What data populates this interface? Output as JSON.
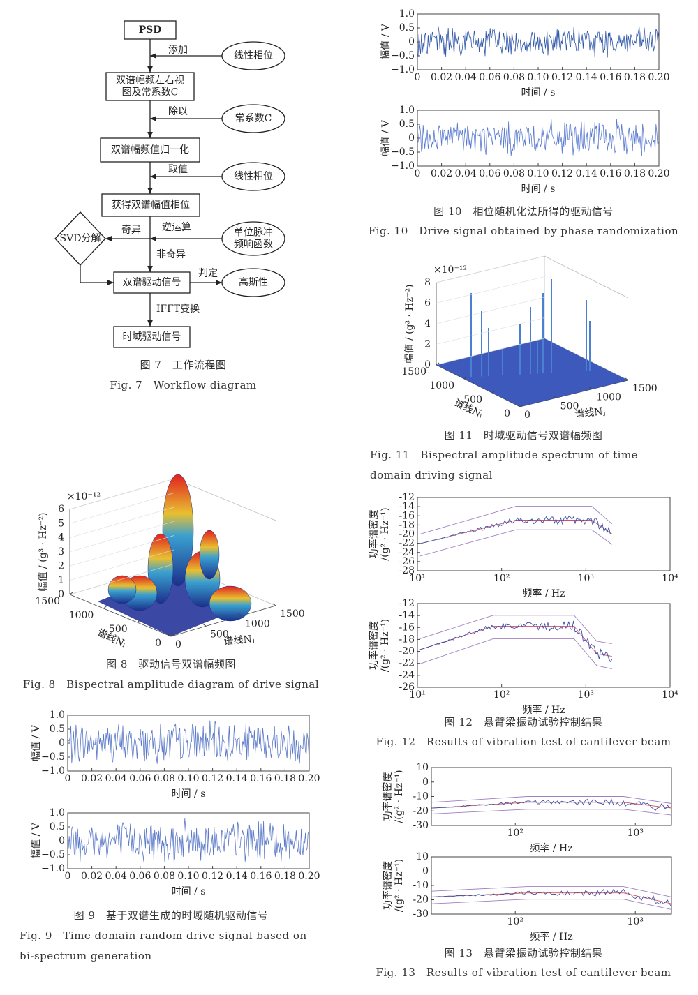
{
  "fig7": {
    "nodes": [
      {
        "label": "PSD"
      },
      {
        "label": "线性相位"
      },
      {
        "lines": [
          "双谱幅频左右视",
          "图及常系数C"
        ]
      },
      {
        "label": "常系数C"
      },
      {
        "label": "双谱幅频值归一化"
      },
      {
        "label": "线性相位"
      },
      {
        "label": "获得双谱幅值相位"
      },
      {
        "label": "SVD分解"
      },
      {
        "lines": [
          "单位脉冲",
          "频响函数"
        ]
      },
      {
        "label": "双谱驱动信号"
      },
      {
        "label": "高斯性"
      },
      {
        "label": "时域驱动信号"
      }
    ],
    "edge_labels": [
      "添加",
      "除以",
      "取值",
      "逆运算",
      "奇异",
      "非奇异",
      "判定",
      "IFFT变换"
    ],
    "caption_cn": "图 7　工作流程图",
    "caption_en": "Fig. 7　Workflow diagram"
  },
  "fig8": {
    "zlabel": "幅值 / (g³ · Hz⁻²)",
    "zscale": "×10⁻¹²",
    "zlim": [
      0,
      6
    ],
    "zticks": [
      0,
      1,
      2,
      3,
      4,
      5,
      6
    ],
    "ni_label": "谱线Nᵢ",
    "ni_lim": [
      0,
      1500
    ],
    "ni_ticks": [
      0,
      500,
      1000,
      1500
    ],
    "nj_label": "谱线Nⱼ",
    "nj_lim": [
      0,
      1500
    ],
    "nj_ticks": [
      0,
      500,
      1000,
      1500
    ],
    "caption_cn": "图 8　驱动信号双谱幅频图",
    "caption_en": "Fig. 8　Bispectral amplitude diagram of drive signal"
  },
  "fig9": {
    "plots": [
      {
        "ylabel": "幅值 / V",
        "xlabel": "时间 / s",
        "xlim": [
          0,
          0.2
        ],
        "ylim": [
          -1,
          1
        ],
        "xticks": [
          0,
          0.02,
          0.04,
          0.06,
          0.08,
          {
            "value": 0.1,
            "label": "0.10"
          },
          0.12,
          0.14,
          0.16,
          0.18,
          {
            "value": 0.2,
            "label": "0.20"
          }
        ],
        "yticks": [
          {
            "value": -1,
            "label": "−1.0"
          },
          {
            "value": -0.5,
            "label": "−0.5"
          },
          0,
          0.5,
          {
            "value": 1,
            "label": "1.0"
          }
        ]
      },
      {
        "ylabel": "幅值 / V",
        "xlabel": "时间 / s",
        "xlim": [
          0,
          0.2
        ],
        "ylim": [
          -1,
          1
        ],
        "xticks": [
          0,
          0.02,
          0.04,
          0.06,
          0.08,
          {
            "value": 0.1,
            "label": "0.10"
          },
          0.12,
          0.14,
          0.16,
          0.18,
          {
            "value": 0.2,
            "label": "0.20"
          }
        ],
        "yticks": [
          {
            "value": -1,
            "label": "−1.0"
          },
          {
            "value": -0.5,
            "label": "−0.5"
          },
          0,
          0.5,
          {
            "value": 1,
            "label": "1.0"
          }
        ]
      }
    ],
    "caption_cn": "图 9　基于双谱生成的时域随机驱动信号",
    "caption_en": "Fig. 9　Time domain random drive signal based on bi-spectrum generation"
  },
  "fig10": {
    "plots": [
      {
        "ylabel": "幅值 / V",
        "xlabel": "时间 / s",
        "xlim": [
          0,
          0.2
        ],
        "ylim": [
          -1,
          1
        ],
        "xticks": [
          0,
          0.02,
          0.04,
          0.06,
          0.08,
          {
            "value": 0.1,
            "label": "0.10"
          },
          0.12,
          0.14,
          0.16,
          0.18,
          {
            "value": 0.2,
            "label": "0.20"
          }
        ],
        "yticks": [
          {
            "value": -1,
            "label": "−1.0"
          },
          {
            "value": -0.5,
            "label": "−0.5"
          },
          0,
          0.5,
          {
            "value": 1,
            "label": "1.0"
          }
        ]
      },
      {
        "ylabel": "幅值 / V",
        "xlabel": "时间 / s",
        "xlim": [
          0,
          0.2
        ],
        "ylim": [
          -1,
          1
        ],
        "xticks": [
          0,
          0.02,
          0.04,
          0.06,
          0.08,
          {
            "value": 0.1,
            "label": "0.10"
          },
          0.12,
          0.14,
          0.16,
          0.18,
          {
            "value": 0.2,
            "label": "0.20"
          }
        ],
        "yticks": [
          {
            "value": -1,
            "label": "−1.0"
          },
          {
            "value": -0.5,
            "label": "−0.5"
          },
          0,
          0.5,
          {
            "value": 1,
            "label": "1.0"
          }
        ]
      }
    ],
    "caption_cn": "图 10　相位随机化法所得的驱动信号",
    "caption_en": "Fig. 10　Drive signal obtained by phase randomization"
  },
  "fig11": {
    "zlabel": "幅值 / (g³ · Hz⁻²)",
    "zscale": "×10⁻¹²",
    "zlim": [
      0,
      8
    ],
    "zticks": [
      0,
      2,
      4,
      6,
      8
    ],
    "ni_label": "谱线Nᵢ",
    "ni_lim": [
      0,
      1500
    ],
    "ni_ticks": [
      0,
      500,
      1000,
      1500
    ],
    "nj_label": "谱线Nⱼ",
    "nj_lim": [
      0,
      1500
    ],
    "nj_ticks": [
      0,
      500,
      1000,
      1500
    ],
    "caption_cn": "图 11　时域驱动信号双谱幅频图",
    "caption_en": "Fig. 11　Bispectral amplitude spectrum of time domain driving signal"
  },
  "fig12": {
    "plots": [
      {
        "ylabel": [
          "功率谱密度",
          "/(g² · Hz⁻¹)"
        ],
        "xlabel": "频率 / Hz",
        "xscale": "log",
        "xlim": [
          10,
          10000
        ],
        "ylim": [
          -28,
          -12
        ],
        "xticks": [
          {
            "value": 10,
            "label": "10¹"
          },
          {
            "value": 100,
            "label": "10²"
          },
          {
            "value": 1000,
            "label": "10³"
          },
          {
            "value": 10000,
            "label": "10⁴"
          }
        ],
        "yticks": [
          -28,
          -26,
          -24,
          -22,
          -20,
          -18,
          -16,
          -14,
          -12
        ]
      },
      {
        "ylabel": [
          "功率谱密度",
          "/(g² · Hz⁻¹)"
        ],
        "xlabel": "频率 / Hz",
        "xscale": "log",
        "xlim": [
          10,
          10000
        ],
        "ylim": [
          -26,
          -12
        ],
        "xticks": [
          {
            "value": 10,
            "label": "10¹"
          },
          {
            "value": 100,
            "label": "10²"
          },
          {
            "value": 1000,
            "label": "10³"
          },
          {
            "value": 10000,
            "label": "10⁴"
          }
        ],
        "yticks": [
          -26,
          -24,
          -22,
          -20,
          -18,
          -16,
          -14,
          -12
        ]
      }
    ],
    "caption_cn": "图 12　悬臂梁振动试验控制结果",
    "caption_en": "Fig. 12　Results of vibration test of cantilever beam"
  },
  "fig13": {
    "plots": [
      {
        "ylabel": [
          "功率谱密度",
          "/(g² · Hz⁻¹)"
        ],
        "xlabel": "频率 / Hz",
        "xscale": "log",
        "xlim": [
          20,
          2000
        ],
        "ylim": [
          -30,
          10
        ],
        "xticks": [
          {
            "value": 100,
            "label": "10²"
          },
          {
            "value": 1000,
            "label": "10³"
          }
        ],
        "yticks": [
          -30,
          -20,
          -10,
          0,
          10
        ]
      },
      {
        "ylabel": [
          "功率谱密度",
          "/(g² · Hz⁻¹)"
        ],
        "xlabel": "频率 / Hz",
        "xscale": "log",
        "xlim": [
          20,
          2000
        ],
        "ylim": [
          -30,
          10
        ],
        "xticks": [
          {
            "value": 100,
            "label": "10²"
          },
          {
            "value": 1000,
            "label": "10³"
          }
        ],
        "yticks": [
          -30,
          -20,
          -10,
          0,
          10
        ]
      }
    ],
    "caption_cn": "图 13　悬臂梁振动试验控制结果",
    "caption_en": "Fig. 13　Results of vibration test of cantilever beam"
  }
}
